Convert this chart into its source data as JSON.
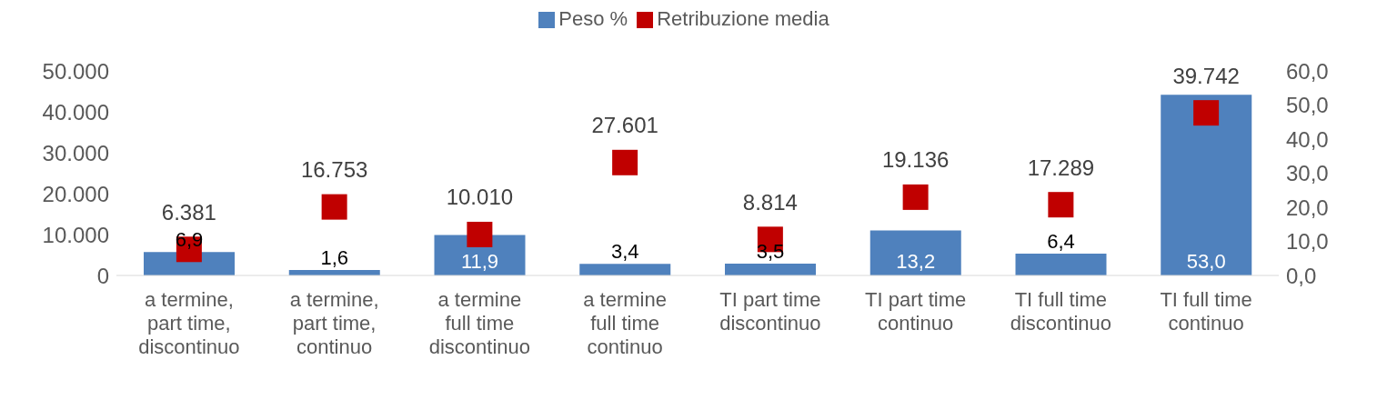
{
  "chart_data": {
    "type": "bar",
    "categories": [
      "a termine, part time, discontinuo",
      "a termine, part time, continuo",
      "a termine full time discontinuo",
      "a termine full time continuo",
      "TI part time discontinuo",
      "TI part time continuo",
      "TI full time discontinuo",
      "TI full time continuo"
    ],
    "series": [
      {
        "name": "Peso %",
        "axis": "y2",
        "color": "#4f81bd",
        "values": [
          6.9,
          1.6,
          11.9,
          3.4,
          3.5,
          13.2,
          6.4,
          53.0
        ],
        "value_labels": [
          "6,9",
          "1,6",
          "11,9",
          "3,4",
          "3,5",
          "13,2",
          "6,4",
          "53,0"
        ]
      },
      {
        "name": "Retribuzione media",
        "type": "scatter",
        "color": "#c00000",
        "values": [
          6381,
          16753,
          10010,
          27601,
          8814,
          19136,
          17289,
          39742
        ],
        "value_labels": [
          "6.381",
          "16.753",
          "10.010",
          "27.601",
          "8.814",
          "19.136",
          "17.289",
          "39.742"
        ]
      }
    ],
    "ylim": [
      0,
      50000
    ],
    "yticks": [
      {
        "value": 0,
        "label": "0"
      },
      {
        "value": 10000,
        "label": "10.000"
      },
      {
        "value": 20000,
        "label": "20.000"
      },
      {
        "value": 30000,
        "label": "30.000"
      },
      {
        "value": 40000,
        "label": "40.000"
      },
      {
        "value": 50000,
        "label": "50.000"
      }
    ],
    "y2lim": [
      0,
      60
    ],
    "y2ticks": [
      {
        "value": 0,
        "label": "0,0"
      },
      {
        "value": 10,
        "label": "10,0"
      },
      {
        "value": 20,
        "label": "20,0"
      },
      {
        "value": 30,
        "label": "30,0"
      },
      {
        "value": 40,
        "label": "40,0"
      },
      {
        "value": 50,
        "label": "50,0"
      },
      {
        "value": 60,
        "label": "60,0"
      }
    ],
    "marker": "square",
    "legend": "top"
  }
}
